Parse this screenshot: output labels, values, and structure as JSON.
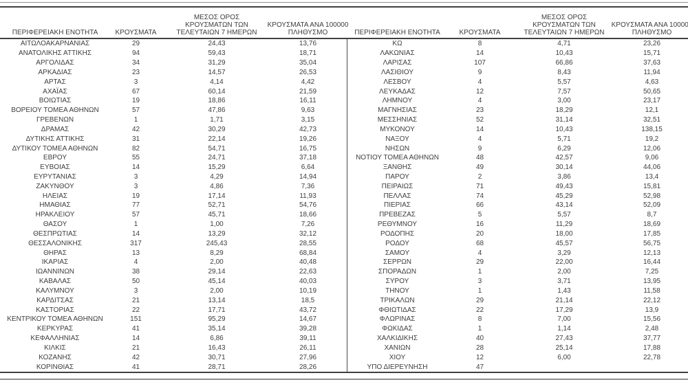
{
  "columns": {
    "region": "ΠΕΡΙΦΕΡΕΙΑΚΗ ΕΝΟΤΗΤΑ",
    "cases": "ΚΡΟΥΣΜΑΤΑ",
    "avg7": "ΜΕΣΟΣ ΟΡΟΣ\nΚΡΟΥΣΜΑΤΩΝ ΤΩΝ\nΤΕΛΕΥΤΑΙΩΝ 7 ΗΜΕΡΩΝ",
    "per100k": "ΚΡΟΥΣΜΑΤΑ ΑΝΑ 100000\nΠΛΗΘΥΣΜΟ"
  },
  "tables": [
    {
      "side": "left",
      "rows": [
        [
          "ΑΙΤΩΛΟΑΚΑΡΝΑΝΙΑΣ",
          "29",
          "24,43",
          "13,76"
        ],
        [
          "ΑΝΑΤΟΛΙΚΗΣ ΑΤΤΙΚΗΣ",
          "94",
          "59,43",
          "18,71"
        ],
        [
          "ΑΡΓΟΛΙΔΑΣ",
          "34",
          "31,29",
          "35,04"
        ],
        [
          "ΑΡΚΑΔΙΑΣ",
          "23",
          "14,57",
          "26,53"
        ],
        [
          "ΑΡΤΑΣ",
          "3",
          "4,14",
          "4,42"
        ],
        [
          "ΑΧΑΪΑΣ",
          "67",
          "60,14",
          "21,59"
        ],
        [
          "ΒΟΙΩΤΙΑΣ",
          "19",
          "18,86",
          "16,11"
        ],
        [
          "ΒΟΡΕΙΟΥ ΤΟΜΕΑ ΑΘΗΝΩΝ",
          "57",
          "47,86",
          "9,63"
        ],
        [
          "ΓΡΕΒΕΝΩΝ",
          "1",
          "1,71",
          "3,15"
        ],
        [
          "ΔΡΑΜΑΣ",
          "42",
          "30,29",
          "42,73"
        ],
        [
          "ΔΥΤΙΚΗΣ ΑΤΤΙΚΗΣ",
          "31",
          "22,14",
          "19,26"
        ],
        [
          "ΔΥΤΙΚΟΥ ΤΟΜΕΑ ΑΘΗΝΩΝ",
          "82",
          "54,71",
          "16,75"
        ],
        [
          "ΕΒΡΟΥ",
          "55",
          "24,71",
          "37,18"
        ],
        [
          "ΕΥΒΟΙΑΣ",
          "14",
          "15,29",
          "6,64"
        ],
        [
          "ΕΥΡΥΤΑΝΙΑΣ",
          "3",
          "4,29",
          "14,94"
        ],
        [
          "ΖΑΚΥΝΘΟΥ",
          "3",
          "4,86",
          "7,36"
        ],
        [
          "ΗΛΕΙΑΣ",
          "19",
          "17,14",
          "11,93"
        ],
        [
          "ΗΜΑΘΙΑΣ",
          "77",
          "52,71",
          "54,76"
        ],
        [
          "ΗΡΑΚΛΕΙΟΥ",
          "57",
          "45,71",
          "18,66"
        ],
        [
          "ΘΑΣΟΥ",
          "1",
          "1,00",
          "7,26"
        ],
        [
          "ΘΕΣΠΡΩΤΙΑΣ",
          "14",
          "13,29",
          "32,12"
        ],
        [
          "ΘΕΣΣΑΛΟΝΙΚΗΣ",
          "317",
          "245,43",
          "28,55"
        ],
        [
          "ΘΗΡΑΣ",
          "13",
          "8,29",
          "68,84"
        ],
        [
          "ΙΚΑΡΙΑΣ",
          "4",
          "2,00",
          "40,48"
        ],
        [
          "ΙΩΑΝΝΙΝΩΝ",
          "38",
          "29,14",
          "22,63"
        ],
        [
          "ΚΑΒΑΛΑΣ",
          "50",
          "45,14",
          "40,03"
        ],
        [
          "ΚΑΛΥΜΝΟΥ",
          "3",
          "2,00",
          "10,19"
        ],
        [
          "ΚΑΡΔΙΤΣΑΣ",
          "21",
          "13,14",
          "18,5"
        ],
        [
          "ΚΑΣΤΟΡΙΑΣ",
          "22",
          "17,71",
          "43,72"
        ],
        [
          "ΚΕΝΤΡΙΚΟΥ ΤΟΜΕΑ ΑΘΗΝΩΝ",
          "151",
          "95,29",
          "14,67"
        ],
        [
          "ΚΕΡΚΥΡΑΣ",
          "41",
          "35,14",
          "39,28"
        ],
        [
          "ΚΕΦΑΛΛΗΝΙΑΣ",
          "14",
          "6,86",
          "39,11"
        ],
        [
          "ΚΙΛΚΙΣ",
          "21",
          "16,43",
          "26,11"
        ],
        [
          "ΚΟΖΑΝΗΣ",
          "42",
          "30,71",
          "27,96"
        ],
        [
          "ΚΟΡΙΝΘΙΑΣ",
          "41",
          "28,71",
          "28,26"
        ]
      ]
    },
    {
      "side": "right",
      "rows": [
        [
          "ΚΩ",
          "8",
          "4,71",
          "23,26"
        ],
        [
          "ΛΑΚΩΝΙΑΣ",
          "14",
          "10,43",
          "15,71"
        ],
        [
          "ΛΑΡΙΣΑΣ",
          "107",
          "66,86",
          "37,63"
        ],
        [
          "ΛΑΣΙΘΙΟΥ",
          "9",
          "8,43",
          "11,94"
        ],
        [
          "ΛΕΣΒΟΥ",
          "4",
          "5,57",
          "4,63"
        ],
        [
          "ΛΕΥΚΑΔΑΣ",
          "12",
          "7,57",
          "50,65"
        ],
        [
          "ΛΗΜΝΟΥ",
          "4",
          "3,00",
          "23,17"
        ],
        [
          "ΜΑΓΝΗΣΙΑΣ",
          "23",
          "18,29",
          "12,1"
        ],
        [
          "ΜΕΣΣΗΝΙΑΣ",
          "52",
          "31,14",
          "32,51"
        ],
        [
          "ΜΥΚΟΝΟΥ",
          "14",
          "10,43",
          "138,15"
        ],
        [
          "ΝΑΞΟΥ",
          "4",
          "5,71",
          "19,2"
        ],
        [
          "ΝΗΣΩΝ",
          "9",
          "6,29",
          "12,06"
        ],
        [
          "ΝΟΤΙΟΥ ΤΟΜΕΑ ΑΘΗΝΩΝ",
          "48",
          "42,57",
          "9,06"
        ],
        [
          "ΞΑΝΘΗΣ",
          "49",
          "30,14",
          "44,06"
        ],
        [
          "ΠΑΡΟΥ",
          "2",
          "3,86",
          "13,4"
        ],
        [
          "ΠΕΙΡΑΙΩΣ",
          "71",
          "49,43",
          "15,81"
        ],
        [
          "ΠΕΛΛΑΣ",
          "74",
          "45,29",
          "52,98"
        ],
        [
          "ΠΙΕΡΙΑΣ",
          "66",
          "43,14",
          "52,09"
        ],
        [
          "ΠΡΕΒΕΖΑΣ",
          "5",
          "5,57",
          "8,7"
        ],
        [
          "ΡΕΘΥΜΝΟΥ",
          "16",
          "11,29",
          "18,69"
        ],
        [
          "ΡΟΔΟΠΗΣ",
          "20",
          "18,00",
          "17,85"
        ],
        [
          "ΡΟΔΟΥ",
          "68",
          "45,57",
          "56,75"
        ],
        [
          "ΣΑΜΟΥ",
          "4",
          "3,29",
          "12,13"
        ],
        [
          "ΣΕΡΡΩΝ",
          "29",
          "22,00",
          "16,44"
        ],
        [
          "ΣΠΟΡΑΔΩΝ",
          "1",
          "2,00",
          "7,25"
        ],
        [
          "ΣΥΡΟΥ",
          "3",
          "3,71",
          "13,95"
        ],
        [
          "ΤΗΝΟΥ",
          "1",
          "1,43",
          "11,58"
        ],
        [
          "ΤΡΙΚΑΛΩΝ",
          "29",
          "21,14",
          "22,12"
        ],
        [
          "ΦΘΙΩΤΙΔΑΣ",
          "22",
          "17,29",
          "13,9"
        ],
        [
          "ΦΛΩΡΙΝΑΣ",
          "8",
          "7,00",
          "15,56"
        ],
        [
          "ΦΩΚΙΔΑΣ",
          "1",
          "1,14",
          "2,48"
        ],
        [
          "ΧΑΛΚΙΔΙΚΗΣ",
          "40",
          "27,43",
          "37,77"
        ],
        [
          "ΧΑΝΙΩΝ",
          "28",
          "25,14",
          "17,88"
        ],
        [
          "ΧΙΟΥ",
          "12",
          "6,00",
          "22,78"
        ],
        [
          "ΥΠΟ ΔΙΕΡΕΥΝΗΣΗ",
          "47",
          "",
          ""
        ]
      ]
    }
  ],
  "colors": {
    "text": "#3d3d3d",
    "rule_dark": "#3f3f3f",
    "rule_light": "#8f8f8f",
    "background": "#ffffff"
  }
}
